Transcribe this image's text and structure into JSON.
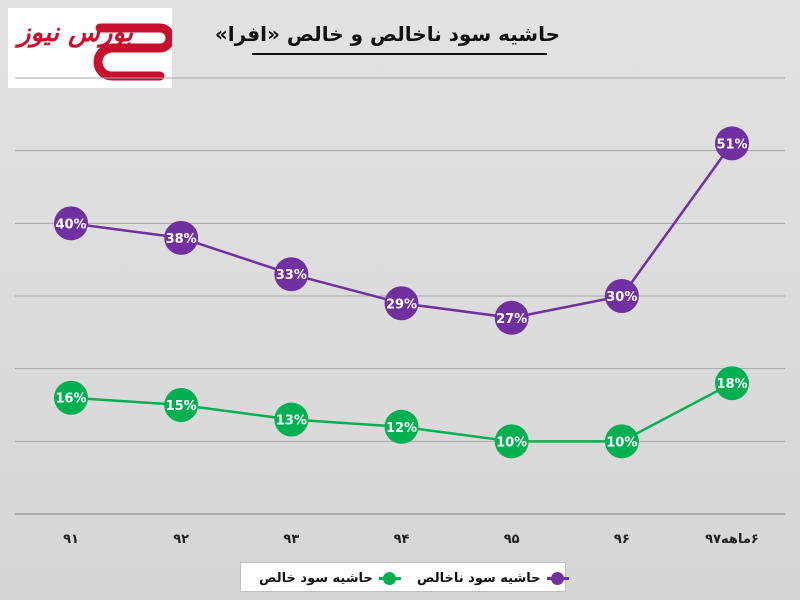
{
  "branding": {
    "logo_text": "بورس نیوز"
  },
  "colors": {
    "background": "#d9d9d9",
    "gross_margin": "#7030a0",
    "net_margin": "#00b050",
    "grid": "#a6a6a6",
    "brand": "#c8102e"
  },
  "chart_data": {
    "type": "line",
    "title": "حاشیه سود ناخالص و خالص «افرا»",
    "categories": [
      "۹۱",
      "۹۲",
      "۹۳",
      "۹۴",
      "۹۵",
      "۹۶",
      "۶ماهه۹۷"
    ],
    "series": [
      {
        "name": "حاشیه سود ناخالص",
        "values": [
          40,
          38,
          33,
          29,
          27,
          30,
          51
        ],
        "labels": [
          "40%",
          "38%",
          "33%",
          "29%",
          "27%",
          "30%",
          "51%"
        ],
        "color": "#7030a0"
      },
      {
        "name": "حاشیه سود خالص",
        "values": [
          16,
          15,
          13,
          12,
          10,
          10,
          18
        ],
        "labels": [
          "16%",
          "15%",
          "13%",
          "12%",
          "10%",
          "10%",
          "18%"
        ],
        "color": "#00b050"
      }
    ],
    "ylim": [
      0,
      60
    ],
    "grid": true,
    "legend_position": "bottom"
  }
}
